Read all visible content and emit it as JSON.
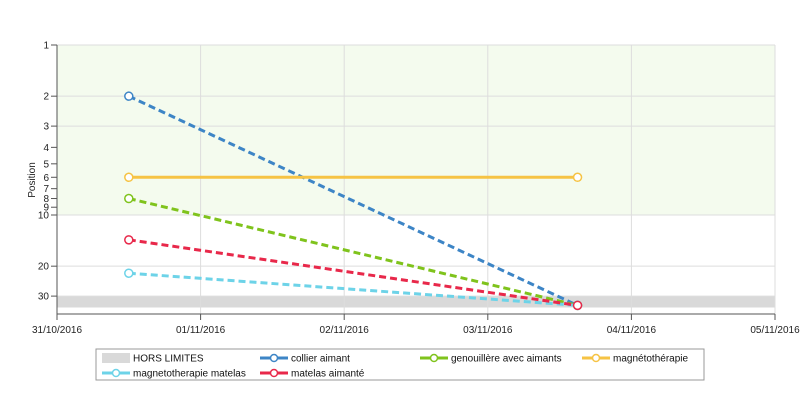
{
  "chart_data": {
    "type": "line",
    "title": "",
    "xlabel": "",
    "ylabel": "Position",
    "y_scale": "log",
    "y_reversed": true,
    "ylim": [
      1,
      35
    ],
    "y_ticks": [
      1,
      2,
      3,
      4,
      5,
      6,
      7,
      8,
      9,
      10,
      20,
      30
    ],
    "y_tick_labels": [
      "1",
      "2",
      "3",
      "4",
      "5",
      "6",
      "7",
      "8",
      "9",
      "10",
      "20",
      "30"
    ],
    "xlim": [
      "2016-10-31",
      "2016-11-05"
    ],
    "x_tick_labels": [
      "31/10/2016",
      "01/11/2016",
      "02/11/2016",
      "03/11/2016",
      "04/11/2016",
      "05/11/2016"
    ],
    "grid": true,
    "legend_position": "bottom",
    "bands": [
      {
        "name": "HORS LIMITES",
        "from": 30,
        "to": 35,
        "color": "#d9d9d9"
      }
    ],
    "top_region": {
      "from": 1,
      "to": 10,
      "color": "#f4fbee"
    },
    "series": [
      {
        "name": "collier aimant",
        "color": "#3d85c6",
        "dashed": true,
        "points": [
          {
            "x": "2016-10-31T12:00",
            "y": 2
          },
          {
            "x": "2016-11-03T15:00",
            "y": 34
          }
        ]
      },
      {
        "name": "genouillère avec aimants",
        "color": "#7fc31c",
        "dashed": true,
        "points": [
          {
            "x": "2016-10-31T12:00",
            "y": 8
          },
          {
            "x": "2016-11-03T15:00",
            "y": 34
          }
        ]
      },
      {
        "name": "magnétothérapie",
        "color": "#f6c344",
        "dashed": false,
        "points": [
          {
            "x": "2016-10-31T12:00",
            "y": 6
          },
          {
            "x": "2016-11-03T15:00",
            "y": 6
          }
        ]
      },
      {
        "name": "magnetotherapie matelas",
        "color": "#6dd3e8",
        "dashed": true,
        "points": [
          {
            "x": "2016-10-31T12:00",
            "y": 22
          },
          {
            "x": "2016-11-03T15:00",
            "y": 34
          }
        ]
      },
      {
        "name": "matelas aimanté",
        "color": "#e8284a",
        "dashed": true,
        "points": [
          {
            "x": "2016-10-31T12:00",
            "y": 14
          },
          {
            "x": "2016-11-03T15:00",
            "y": 34
          }
        ]
      }
    ]
  }
}
